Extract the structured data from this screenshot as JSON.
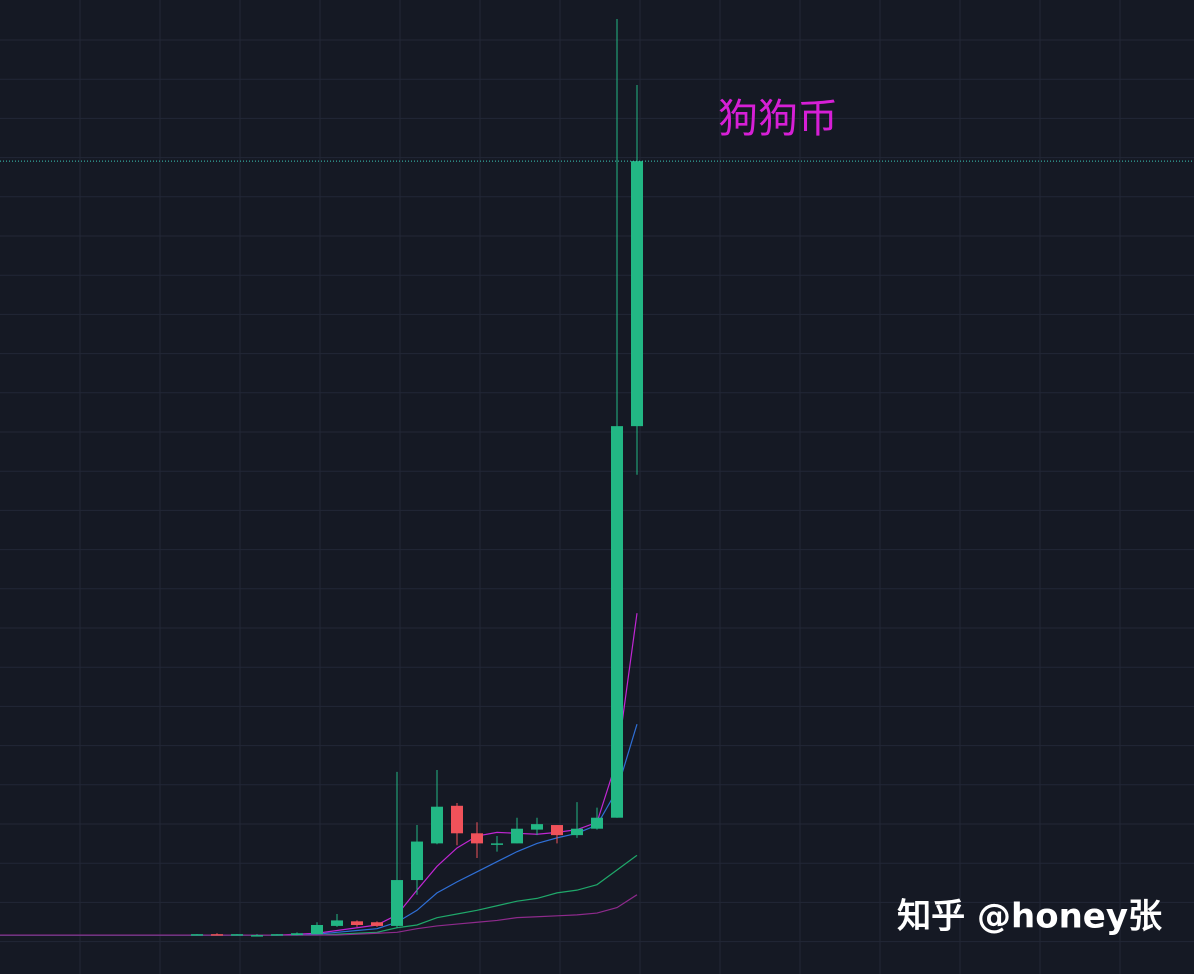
{
  "chart_data": {
    "type": "candlestick",
    "annotation": "狗狗币",
    "watermark": "知乎 @honey张",
    "up_color": "#22b784",
    "down_color": "#f0525a",
    "price_line": true,
    "price_line_color": "#3bc9b8",
    "ylim": [
      0,
      100
    ],
    "open": [
      0.1,
      0.2,
      0.1,
      0.1,
      0.1,
      0.1,
      0.2,
      1.1,
      1.6,
      1.5,
      1.1,
      6.1,
      10.1,
      14.2,
      11.2,
      10.1,
      10.1,
      11.6,
      12.1,
      11.0,
      11.7,
      12.9,
      55.6
    ],
    "high": [
      0.2,
      0.3,
      0.2,
      0.2,
      0.2,
      0.4,
      1.5,
      2.4,
      1.7,
      1.6,
      17.9,
      12.1,
      18.1,
      14.5,
      12.4,
      10.9,
      12.9,
      12.9,
      12.1,
      14.6,
      14.0,
      100,
      92.8
    ],
    "low": [
      0.1,
      0.1,
      0.1,
      0.1,
      0.1,
      0.1,
      0.2,
      1.0,
      1.0,
      1.0,
      0.9,
      4.5,
      10.0,
      9.9,
      8.5,
      9.2,
      10.1,
      11.0,
      10.1,
      10.7,
      11.6,
      12.9,
      50.3
    ],
    "close": [
      0.2,
      0.1,
      0.2,
      0.1,
      0.2,
      0.3,
      1.2,
      1.7,
      1.2,
      1.1,
      6.1,
      10.3,
      14.1,
      11.2,
      10.1,
      10.1,
      11.7,
      12.2,
      11.0,
      11.7,
      12.9,
      55.6,
      84.5
    ],
    "series": [
      {
        "color": "#c026d3",
        "values": [
          0.1,
          0.1,
          0.1,
          0.1,
          0.1,
          0.2,
          0.3,
          0.6,
          0.9,
          1.2,
          2.3,
          5.0,
          7.6,
          9.6,
          10.9,
          11.3,
          11.2,
          11.1,
          11.3,
          11.6,
          12.4,
          19.2,
          35.2
        ]
      },
      {
        "color": "#2f6fd6",
        "values": [
          0.1,
          0.1,
          0.1,
          0.1,
          0.1,
          0.1,
          0.2,
          0.4,
          0.6,
          0.8,
          1.5,
          2.8,
          4.7,
          5.9,
          7.0,
          8.1,
          9.2,
          10.1,
          10.7,
          11.2,
          12.1,
          15.9,
          23.1
        ]
      },
      {
        "color": "#1fa86a",
        "values": [
          0.1,
          0.1,
          0.1,
          0.1,
          0.1,
          0.1,
          0.1,
          0.2,
          0.3,
          0.4,
          0.9,
          1.2,
          2.0,
          2.4,
          2.8,
          3.3,
          3.8,
          4.1,
          4.7,
          5.0,
          5.6,
          7.2,
          8.8
        ]
      },
      {
        "color": "#8e2a8c",
        "values": [
          0.1,
          0.1,
          0.1,
          0.1,
          0.1,
          0.1,
          0.1,
          0.1,
          0.2,
          0.3,
          0.4,
          0.8,
          1.1,
          1.3,
          1.5,
          1.7,
          2.0,
          2.1,
          2.2,
          2.3,
          2.5,
          3.1,
          4.5
        ]
      }
    ]
  }
}
